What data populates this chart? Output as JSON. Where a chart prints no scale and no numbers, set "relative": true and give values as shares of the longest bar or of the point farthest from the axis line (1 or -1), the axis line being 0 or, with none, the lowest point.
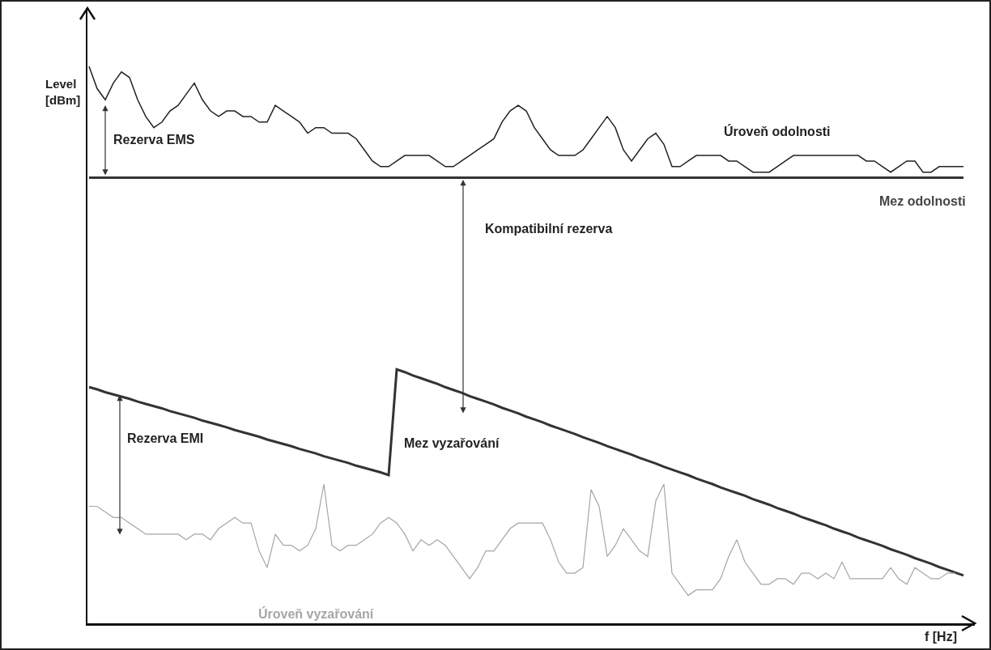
{
  "chart_data": {
    "type": "line",
    "relative": true,
    "legend": false,
    "marker": "none",
    "xlabel": "f [Hz]",
    "ylabel": "Level\n[dBm]",
    "categories": [
      null,
      null,
      null,
      null,
      null,
      null,
      null,
      null,
      null,
      null,
      null,
      null,
      null,
      null,
      null,
      null,
      null,
      null,
      null,
      null,
      null,
      null,
      null,
      null,
      null,
      null,
      null,
      null,
      null,
      null,
      null,
      null,
      null,
      null,
      null,
      null,
      null,
      null,
      null,
      null,
      null,
      null,
      null,
      null,
      null,
      null,
      null,
      null,
      null,
      null,
      null,
      null,
      null,
      null,
      null,
      null,
      null,
      null,
      null,
      null,
      null,
      null,
      null,
      null,
      null,
      null,
      null,
      null,
      null,
      null,
      null,
      null,
      null,
      null,
      null,
      null,
      null,
      null,
      null,
      null,
      null,
      null,
      null,
      null,
      null,
      null,
      null,
      null,
      null,
      null,
      null,
      null,
      null,
      null,
      null,
      null,
      null,
      null,
      null,
      null,
      null,
      null,
      null,
      null,
      null,
      null,
      null,
      null,
      null
    ],
    "series": [
      {
        "name": "Úroveň odolnosti",
        "color": "#222222",
        "values": [
          1.0,
          0.96,
          0.94,
          0.97,
          0.99,
          0.98,
          0.94,
          0.91,
          0.89,
          0.9,
          0.92,
          0.93,
          0.95,
          0.97,
          0.94,
          0.92,
          0.91,
          0.92,
          0.92,
          0.91,
          0.91,
          0.9,
          0.9,
          0.93,
          0.92,
          0.91,
          0.9,
          0.88,
          0.89,
          0.89,
          0.88,
          0.88,
          0.88,
          0.87,
          0.85,
          0.83,
          0.82,
          0.82,
          0.83,
          0.84,
          0.84,
          0.84,
          0.84,
          0.83,
          0.82,
          0.82,
          0.83,
          0.84,
          0.85,
          0.86,
          0.87,
          0.9,
          0.92,
          0.93,
          0.92,
          0.89,
          0.87,
          0.85,
          0.84,
          0.84,
          0.84,
          0.85,
          0.87,
          0.89,
          0.91,
          0.89,
          0.85,
          0.83,
          0.85,
          0.87,
          0.88,
          0.86,
          0.82,
          0.82,
          0.83,
          0.84,
          0.84,
          0.84,
          0.84,
          0.83,
          0.83,
          0.82,
          0.81,
          0.81,
          0.81,
          0.82,
          0.83,
          0.84,
          0.84,
          0.84,
          0.84,
          0.84,
          0.84,
          0.84,
          0.84,
          0.84,
          0.83,
          0.83,
          0.82,
          0.81,
          0.82,
          0.83,
          0.83,
          0.81,
          0.81,
          0.82,
          0.82,
          0.82,
          0.82
        ]
      },
      {
        "name": "Mez odolnosti",
        "color": "#333333",
        "values": [
          0.8,
          0.8,
          0.8,
          0.8,
          0.8,
          0.8,
          0.8,
          0.8,
          0.8,
          0.8,
          0.8,
          0.8,
          0.8,
          0.8,
          0.8,
          0.8,
          0.8,
          0.8,
          0.8,
          0.8,
          0.8,
          0.8,
          0.8,
          0.8,
          0.8,
          0.8,
          0.8,
          0.8,
          0.8,
          0.8,
          0.8,
          0.8,
          0.8,
          0.8,
          0.8,
          0.8,
          0.8,
          0.8,
          0.8,
          0.8,
          0.8,
          0.8,
          0.8,
          0.8,
          0.8,
          0.8,
          0.8,
          0.8,
          0.8,
          0.8,
          0.8,
          0.8,
          0.8,
          0.8,
          0.8,
          0.8,
          0.8,
          0.8,
          0.8,
          0.8,
          0.8,
          0.8,
          0.8,
          0.8,
          0.8,
          0.8,
          0.8,
          0.8,
          0.8,
          0.8,
          0.8,
          0.8,
          0.8,
          0.8,
          0.8,
          0.8,
          0.8,
          0.8,
          0.8,
          0.8,
          0.8,
          0.8,
          0.8,
          0.8,
          0.8,
          0.8,
          0.8,
          0.8,
          0.8,
          0.8,
          0.8,
          0.8,
          0.8,
          0.8,
          0.8,
          0.8,
          0.8,
          0.8,
          0.8,
          0.8,
          0.8,
          0.8,
          0.8,
          0.8,
          0.8,
          0.8,
          0.8,
          0.8,
          0.8
        ]
      },
      {
        "name": "Mez vyzařování",
        "color": "#333333",
        "values": [
          0.424,
          0.42,
          0.415,
          0.411,
          0.407,
          0.403,
          0.398,
          0.394,
          0.39,
          0.386,
          0.381,
          0.377,
          0.373,
          0.369,
          0.364,
          0.36,
          0.356,
          0.352,
          0.347,
          0.343,
          0.339,
          0.335,
          0.33,
          0.326,
          0.322,
          0.318,
          0.313,
          0.309,
          0.305,
          0.3,
          0.296,
          0.292,
          0.288,
          0.283,
          0.279,
          0.275,
          0.271,
          0.266,
          0.456,
          0.451,
          0.445,
          0.44,
          0.435,
          0.43,
          0.424,
          0.419,
          0.414,
          0.408,
          0.403,
          0.398,
          0.393,
          0.387,
          0.382,
          0.377,
          0.371,
          0.366,
          0.361,
          0.355,
          0.35,
          0.345,
          0.34,
          0.334,
          0.329,
          0.324,
          0.318,
          0.313,
          0.308,
          0.303,
          0.297,
          0.292,
          0.287,
          0.281,
          0.276,
          0.271,
          0.266,
          0.26,
          0.255,
          0.25,
          0.244,
          0.239,
          0.234,
          0.229,
          0.223,
          0.218,
          0.213,
          0.207,
          0.202,
          0.197,
          0.191,
          0.186,
          0.181,
          0.176,
          0.17,
          0.165,
          0.16,
          0.154,
          0.149,
          0.144,
          0.139,
          0.133,
          0.128,
          0.123,
          0.117,
          0.112,
          0.107,
          0.101,
          0.096,
          0.091,
          0.086
        ]
      },
      {
        "name": "Úroveň vyzařování",
        "color": "#a6a6a6",
        "values": [
          0.21,
          0.21,
          0.2,
          0.19,
          0.19,
          0.18,
          0.17,
          0.16,
          0.16,
          0.16,
          0.16,
          0.16,
          0.15,
          0.16,
          0.16,
          0.15,
          0.17,
          0.18,
          0.19,
          0.18,
          0.18,
          0.13,
          0.1,
          0.16,
          0.14,
          0.14,
          0.13,
          0.14,
          0.17,
          0.25,
          0.14,
          0.13,
          0.14,
          0.14,
          0.15,
          0.16,
          0.18,
          0.19,
          0.18,
          0.16,
          0.13,
          0.15,
          0.14,
          0.15,
          0.14,
          0.12,
          0.1,
          0.08,
          0.1,
          0.13,
          0.13,
          0.15,
          0.17,
          0.18,
          0.18,
          0.18,
          0.18,
          0.15,
          0.11,
          0.09,
          0.09,
          0.1,
          0.24,
          0.21,
          0.12,
          0.14,
          0.17,
          0.15,
          0.13,
          0.12,
          0.22,
          0.25,
          0.09,
          0.07,
          0.05,
          0.06,
          0.06,
          0.06,
          0.08,
          0.12,
          0.15,
          0.11,
          0.09,
          0.07,
          0.07,
          0.08,
          0.08,
          0.07,
          0.09,
          0.09,
          0.08,
          0.09,
          0.08,
          0.11,
          0.08,
          0.08,
          0.08,
          0.08,
          0.08,
          0.1,
          0.08,
          0.07,
          0.1,
          0.09,
          0.08,
          0.08,
          0.09,
          0.09,
          null
        ]
      }
    ],
    "annotations": [
      "Rezerva EMS",
      "Kompatibilní rezerva",
      "Rezerva EMI"
    ]
  }
}
